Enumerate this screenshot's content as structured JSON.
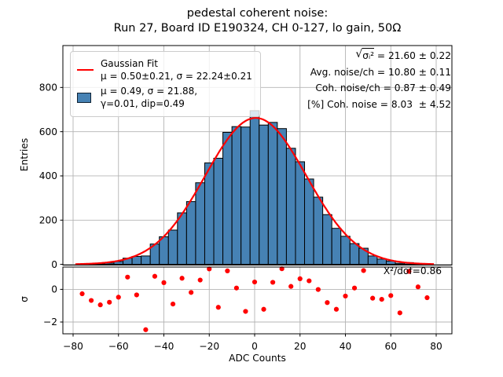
{
  "title": {
    "line1": "pedestal coherent noise:",
    "line2": "Run 27, Board ID E190324, CH 0-127, lo gain, 50Ω"
  },
  "legend": {
    "fit_label": "Gaussian Fit",
    "fit_params": "μ = 0.50±0.21, σ = 22.24±0.21",
    "hist_line1": "μ = 0.49, σ = 21.88,",
    "hist_line2": "γ=0.01, dip=0.49"
  },
  "stats": {
    "sqrt_sign": "√",
    "sqrt_arg": "σᵢ²",
    "sqrt_rest": " = 21.60 ± 0.22",
    "line2": "Avg. noise/ch = 10.80 ± 0.11",
    "line3": "Coh. noise/ch = 0.87 ± 0.49",
    "line4": "[%] Coh. noise = 8.03  ± 4.52"
  },
  "residual": {
    "annotation": "X²/dof=0.86"
  },
  "colors": {
    "bar_fill": "#4682b4",
    "bar_edge": "#000000",
    "fit_line": "#ff0000",
    "dot": "#ff0000",
    "grid": "#b4b4b4",
    "spine": "#000000"
  },
  "chart_data": [
    {
      "type": "bar",
      "title": "pedestal coherent noise: Run 27, Board ID E190324, CH 0-127, lo gain, 50Ω",
      "xlabel": "ADC Counts",
      "ylabel": "Entries",
      "bin_width": 4,
      "categories": [
        -76,
        -72,
        -68,
        -64,
        -60,
        -56,
        -52,
        -48,
        -44,
        -40,
        -36,
        -32,
        -28,
        -24,
        -20,
        -16,
        -12,
        -8,
        -4,
        0,
        4,
        8,
        12,
        16,
        20,
        24,
        28,
        32,
        36,
        40,
        44,
        48,
        52,
        56,
        60,
        64,
        68,
        72,
        76
      ],
      "values": [
        1,
        2,
        3,
        6,
        13,
        28,
        36,
        38,
        92,
        125,
        155,
        233,
        284,
        369,
        459,
        480,
        597,
        623,
        621,
        695,
        630,
        642,
        614,
        525,
        464,
        386,
        304,
        225,
        163,
        127,
        94,
        73,
        38,
        24,
        15,
        5,
        8,
        4,
        1
      ],
      "x_ticks": [
        -80,
        -60,
        -40,
        -20,
        0,
        20,
        40,
        60,
        80
      ],
      "y_ticks": [
        0,
        200,
        400,
        600,
        800
      ],
      "xlim": [
        -84.5,
        87
      ],
      "ylim": [
        0,
        990
      ],
      "grid": true,
      "legend_position": "upper left",
      "fit": {
        "name": "Gaussian Fit",
        "mu": 0.5,
        "mu_err": 0.21,
        "sigma": 22.24,
        "sigma_err": 0.21,
        "amplitude": 662
      }
    },
    {
      "type": "scatter",
      "xlabel": "ADC Counts",
      "ylabel": "σ",
      "x": [
        -76,
        -72,
        -68,
        -64,
        -60,
        -56,
        -52,
        -48,
        -44,
        -40,
        -36,
        -32,
        -28,
        -24,
        -20,
        -16,
        -12,
        -8,
        -4,
        0,
        4,
        8,
        12,
        16,
        20,
        24,
        28,
        32,
        36,
        40,
        44,
        48,
        52,
        56,
        60,
        64,
        68,
        72,
        76
      ],
      "y": [
        -0.27,
        -0.68,
        -0.95,
        -0.79,
        -0.48,
        0.75,
        -0.34,
        -2.47,
        0.8,
        0.41,
        -0.9,
        0.68,
        -0.19,
        0.57,
        1.25,
        -1.1,
        1.13,
        0.08,
        -1.35,
        0.45,
        -1.22,
        0.43,
        1.26,
        0.18,
        0.65,
        0.52,
        -0.01,
        -0.81,
        -1.22,
        -0.41,
        0.08,
        1.15,
        -0.54,
        -0.61,
        -0.38,
        -1.44,
        1.1,
        0.15,
        -0.51
      ],
      "x_ticks": [
        -80,
        -60,
        -40,
        -20,
        0,
        20,
        40,
        60,
        80
      ],
      "y_ticks": [
        0,
        -2
      ],
      "xlim": [
        -84.5,
        87
      ],
      "ylim": [
        -2.75,
        1.4
      ],
      "grid": true,
      "annotation": "X²/dof=0.86"
    }
  ]
}
